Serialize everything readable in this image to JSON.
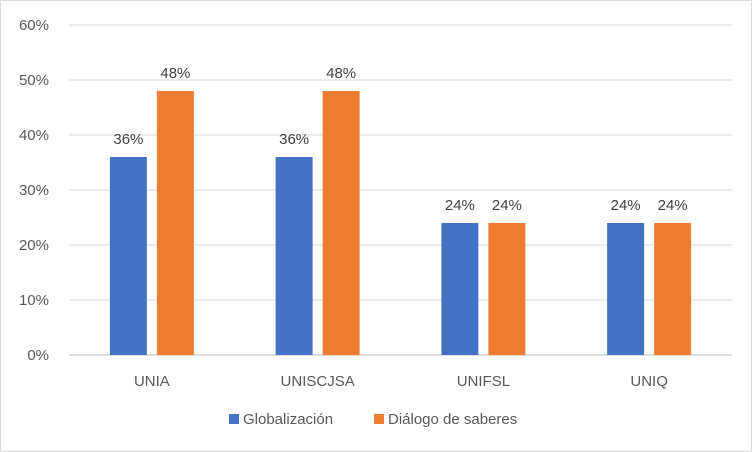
{
  "chart_data": {
    "type": "bar",
    "categories": [
      "UNIA",
      "UNISCJSA",
      "UNIFSL",
      "UNIQ"
    ],
    "series": [
      {
        "name": "Globalización",
        "values": [
          36,
          36,
          24,
          24
        ],
        "color": "#4472C4"
      },
      {
        "name": "Diálogo de saberes",
        "values": [
          48,
          48,
          24,
          24
        ],
        "color": "#ED7D31"
      }
    ],
    "value_labels": [
      [
        "36%",
        "36%",
        "24%",
        "24%"
      ],
      [
        "48%",
        "48%",
        "24%",
        "24%"
      ]
    ],
    "y_ticks": [
      "0%",
      "10%",
      "20%",
      "30%",
      "40%",
      "50%",
      "60%"
    ],
    "ylim": [
      0,
      60
    ],
    "grid": true,
    "legend_position": "bottom"
  }
}
